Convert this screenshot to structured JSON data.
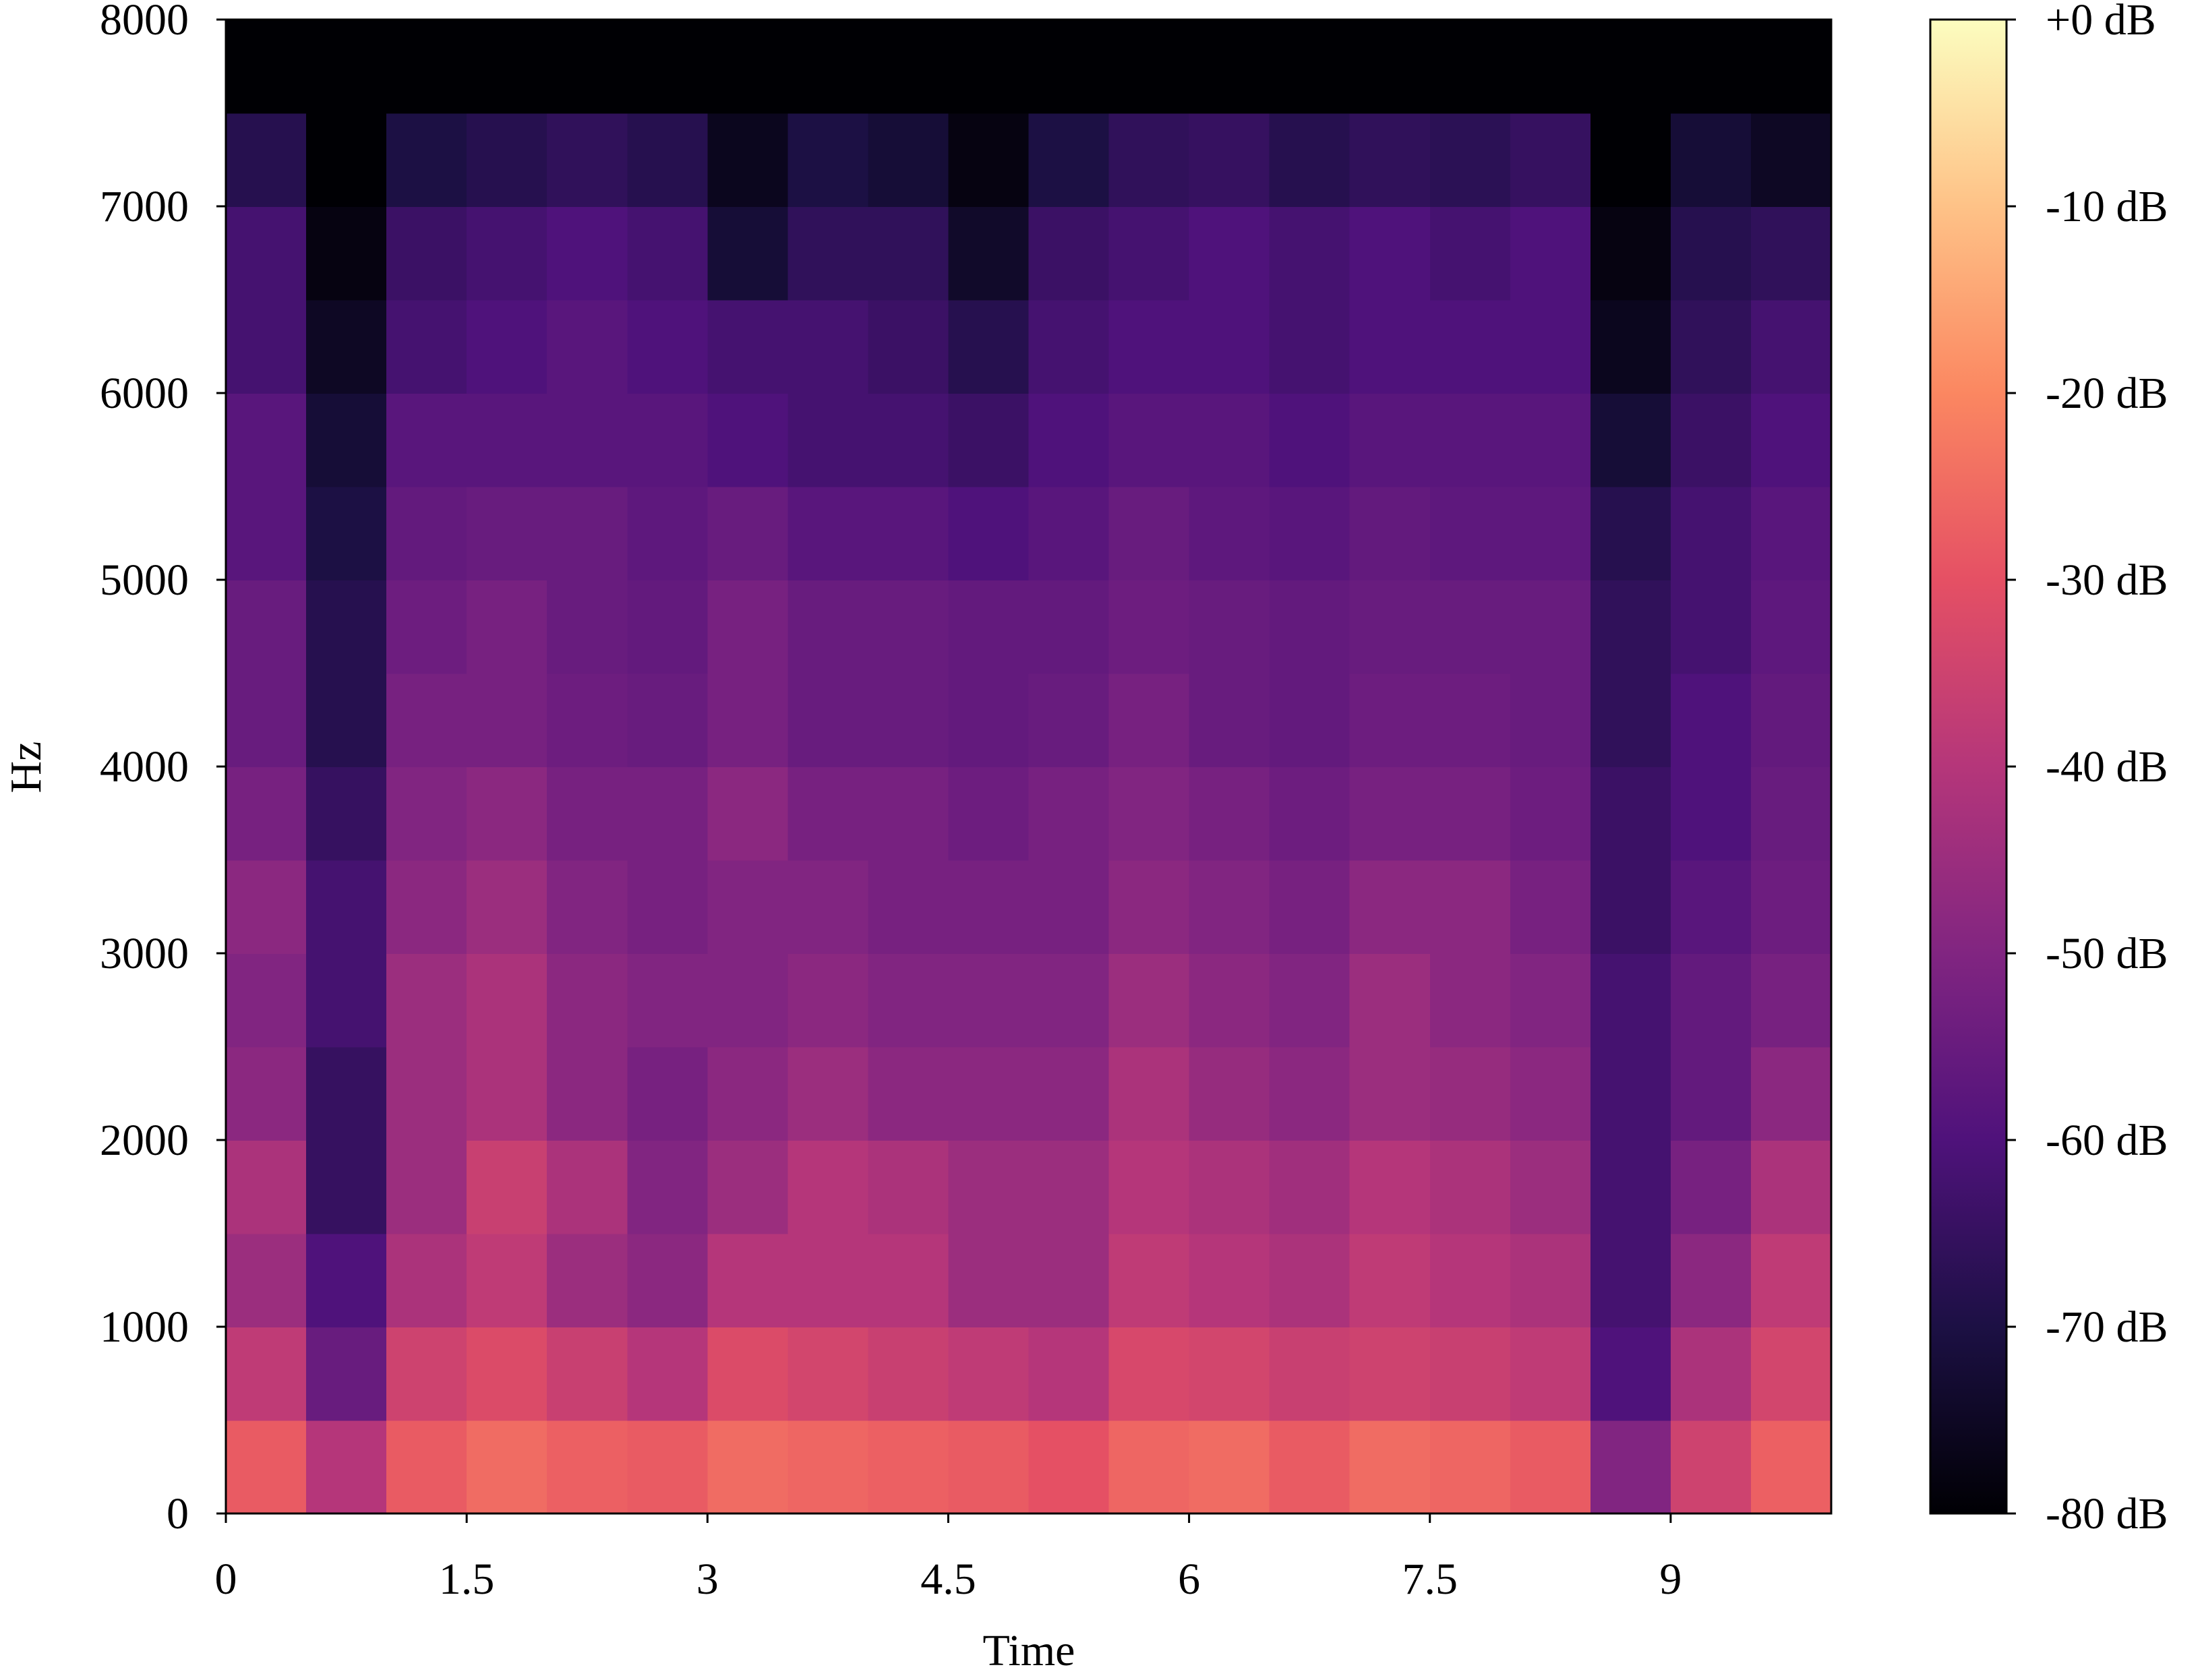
{
  "chart_data": {
    "type": "spectrogram",
    "xlabel": "Time",
    "ylabel": "Hz",
    "xlim": [
      0,
      10
    ],
    "ylim": [
      0,
      8000
    ],
    "xticks": [
      0,
      1.5,
      3,
      4.5,
      6,
      7.5,
      9
    ],
    "yticks": [
      0,
      1000,
      2000,
      3000,
      4000,
      5000,
      6000,
      7000,
      8000
    ],
    "x_bins": [
      0,
      0.5,
      1,
      1.5,
      2,
      2.5,
      3,
      3.5,
      4,
      4.5,
      5,
      5.5,
      6,
      6.5,
      7,
      7.5,
      8,
      8.5,
      9,
      9.5,
      10
    ],
    "y_bins": [
      0,
      500,
      1000,
      1500,
      2000,
      2500,
      3000,
      3500,
      4000,
      4500,
      5000,
      5500,
      6000,
      6500,
      7000,
      7500,
      8000
    ],
    "colormap": "magma",
    "clim": [
      -80,
      0
    ],
    "cticks": [
      {
        "value": 0,
        "label": "+0 dB"
      },
      {
        "value": -10,
        "label": "-10 dB"
      },
      {
        "value": -20,
        "label": "-20 dB"
      },
      {
        "value": -30,
        "label": "-30 dB"
      },
      {
        "value": -40,
        "label": "-40 dB"
      },
      {
        "value": -50,
        "label": "-50 dB"
      },
      {
        "value": -60,
        "label": "-60 dB"
      },
      {
        "value": -70,
        "label": "-70 dB"
      },
      {
        "value": -80,
        "label": "-80 dB"
      }
    ],
    "values": [
      [
        -28,
        -38,
        -45,
        -42,
        -48,
        -50,
        -48,
        -52,
        -55,
        -55,
        -58,
        -58,
        -62,
        -62,
        -68,
        -80
      ],
      [
        -40,
        -55,
        -60,
        -65,
        -65,
        -62,
        -62,
        -65,
        -68,
        -68,
        -70,
        -72,
        -75,
        -78,
        -80,
        -80
      ],
      [
        -28,
        -35,
        -42,
        -45,
        -45,
        -45,
        -48,
        -50,
        -52,
        -54,
        -56,
        -58,
        -62,
        -64,
        -70,
        -80
      ],
      [
        -25,
        -32,
        -38,
        -36,
        -42,
        -42,
        -45,
        -48,
        -52,
        -52,
        -55,
        -58,
        -60,
        -62,
        -68,
        -80
      ],
      [
        -27,
        -36,
        -45,
        -42,
        -48,
        -48,
        -50,
        -52,
        -54,
        -55,
        -55,
        -58,
        -58,
        -60,
        -66,
        -80
      ],
      [
        -28,
        -40,
        -48,
        -50,
        -52,
        -50,
        -52,
        -52,
        -55,
        -56,
        -57,
        -58,
        -60,
        -62,
        -68,
        -80
      ],
      [
        -25,
        -32,
        -40,
        -45,
        -48,
        -50,
        -50,
        -48,
        -52,
        -52,
        -55,
        -60,
        -62,
        -72,
        -76,
        -80
      ],
      [
        -26,
        -34,
        -40,
        -40,
        -45,
        -48,
        -50,
        -52,
        -55,
        -55,
        -58,
        -62,
        -62,
        -66,
        -70,
        -80
      ],
      [
        -27,
        -36,
        -40,
        -42,
        -48,
        -50,
        -52,
        -52,
        -55,
        -55,
        -58,
        -62,
        -64,
        -66,
        -72,
        -80
      ],
      [
        -28,
        -38,
        -45,
        -45,
        -48,
        -50,
        -52,
        -54,
        -56,
        -56,
        -60,
        -64,
        -68,
        -74,
        -78,
        -80
      ],
      [
        -30,
        -40,
        -45,
        -45,
        -48,
        -50,
        -52,
        -52,
        -55,
        -56,
        -58,
        -60,
        -62,
        -64,
        -70,
        -80
      ],
      [
        -26,
        -33,
        -38,
        -40,
        -42,
        -45,
        -48,
        -50,
        -52,
        -54,
        -55,
        -58,
        -60,
        -62,
        -66,
        -80
      ],
      [
        -25,
        -34,
        -40,
        -42,
        -46,
        -48,
        -50,
        -52,
        -55,
        -55,
        -57,
        -58,
        -60,
        -60,
        -65,
        -80
      ],
      [
        -28,
        -36,
        -42,
        -44,
        -48,
        -50,
        -52,
        -54,
        -56,
        -56,
        -58,
        -60,
        -62,
        -62,
        -68,
        -80
      ],
      [
        -25,
        -35,
        -38,
        -40,
        -45,
        -45,
        -48,
        -52,
        -54,
        -55,
        -56,
        -58,
        -60,
        -60,
        -66,
        -80
      ],
      [
        -26,
        -36,
        -40,
        -42,
        -46,
        -48,
        -48,
        -52,
        -54,
        -55,
        -57,
        -58,
        -60,
        -62,
        -67,
        -80
      ],
      [
        -28,
        -38,
        -42,
        -45,
        -48,
        -50,
        -52,
        -54,
        -55,
        -55,
        -57,
        -58,
        -60,
        -60,
        -65,
        -80
      ],
      [
        -50,
        -60,
        -62,
        -62,
        -62,
        -62,
        -64,
        -64,
        -66,
        -66,
        -68,
        -72,
        -76,
        -78,
        -80,
        -80
      ],
      [
        -35,
        -42,
        -48,
        -52,
        -56,
        -56,
        -58,
        -60,
        -60,
        -62,
        -62,
        -64,
        -66,
        -68,
        -72,
        -80
      ],
      [
        -27,
        -34,
        -38,
        -42,
        -48,
        -52,
        -54,
        -55,
        -56,
        -57,
        -58,
        -60,
        -62,
        -66,
        -75,
        -80
      ]
    ]
  }
}
